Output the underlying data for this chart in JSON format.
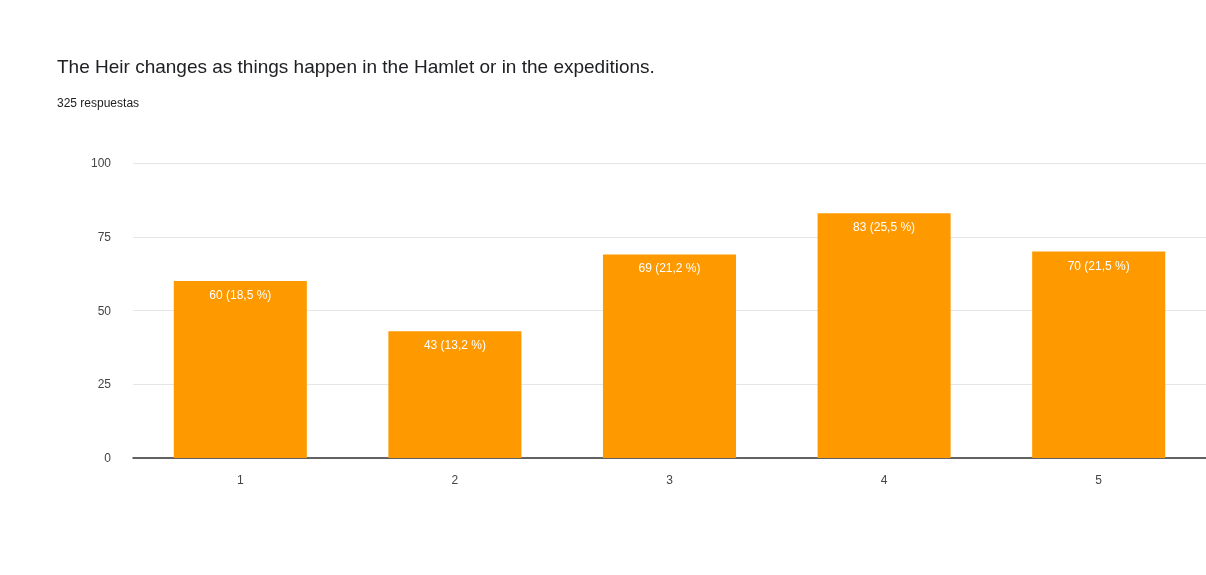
{
  "chart_data": {
    "type": "bar",
    "title": "The Heir changes as things happen in the Hamlet or in the expeditions.",
    "subtitle": "325 respuestas",
    "categories": [
      "1",
      "2",
      "3",
      "4",
      "5"
    ],
    "values": [
      60,
      43,
      69,
      83,
      70
    ],
    "value_labels": [
      "60 (18,5 %)",
      "43 (13,2 %)",
      "69 (21,2 %)",
      "83 (25,5 %)",
      "70 (21,5 %)"
    ],
    "color": "#ff9900",
    "ylim": [
      0,
      100
    ],
    "yticks": [
      0,
      25,
      50,
      75,
      100
    ],
    "grid": "y"
  }
}
